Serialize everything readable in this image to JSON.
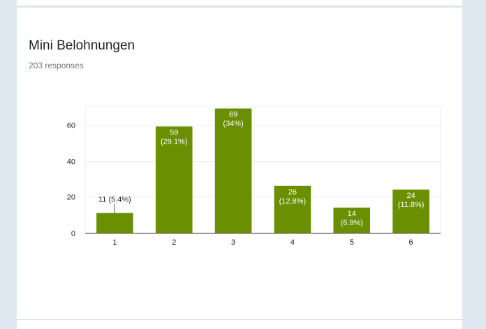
{
  "form": {
    "question_title": "Mini Belohnungen",
    "response_count": "203 responses"
  },
  "colors": {
    "bar": "#6a8f00",
    "grid": "#ececec",
    "axis": "#333333"
  },
  "chart_data": {
    "type": "bar",
    "title": "Mini Belohnungen",
    "subtitle": "203 responses",
    "categories": [
      "1",
      "2",
      "3",
      "4",
      "5",
      "6"
    ],
    "values": [
      11,
      59,
      69,
      26,
      14,
      24
    ],
    "labels": [
      "11 (5.4%)",
      [
        "59",
        "(29.1%)"
      ],
      [
        "69",
        "(34%)"
      ],
      [
        "26",
        "(12.8%)"
      ],
      [
        "14",
        "(6.9%)"
      ],
      [
        "24",
        "(11.8%)"
      ]
    ],
    "outside_label_index": 0,
    "ylim": [
      0,
      70
    ],
    "yticks": [
      0,
      20,
      40,
      60
    ],
    "grid": true,
    "xlabel": "",
    "ylabel": ""
  }
}
